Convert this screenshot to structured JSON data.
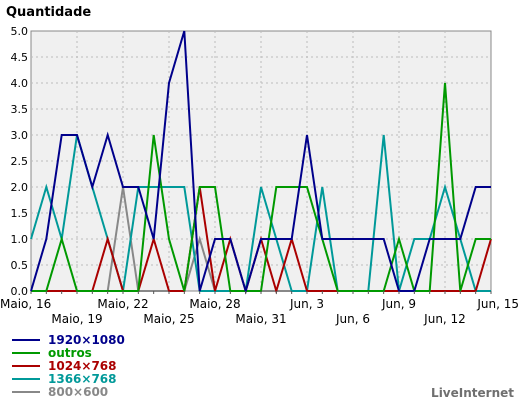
{
  "chart_data": {
    "type": "line",
    "title": "",
    "ylabel": "Quantidade",
    "xlabel": "",
    "ylim": [
      0,
      5
    ],
    "yticks": [
      "0.0",
      "0.5",
      "1.0",
      "1.5",
      "2.0",
      "2.5",
      "3.0",
      "3.5",
      "4.0",
      "4.5",
      "5.0"
    ],
    "x_tick_labels_top": [
      "Maio, 16",
      "Maio, 22",
      "Maio, 28",
      "Jun, 3",
      "Jun, 9",
      "Jun, 15"
    ],
    "x_tick_labels_bottom": [
      "Maio, 19",
      "Maio, 25",
      "Maio, 31",
      "Jun, 6",
      "Jun, 12"
    ],
    "days": [
      "Maio, 16",
      "Maio, 17",
      "Maio, 18",
      "Maio, 19",
      "Maio, 20",
      "Maio, 21",
      "Maio, 22",
      "Maio, 23",
      "Maio, 24",
      "Maio, 25",
      "Maio, 26",
      "Maio, 27",
      "Maio, 28",
      "Maio, 29",
      "Maio, 30",
      "Maio, 31",
      "Jun, 1",
      "Jun, 2",
      "Jun, 3",
      "Jun, 4",
      "Jun, 5",
      "Jun, 6",
      "Jun, 7",
      "Jun, 8",
      "Jun, 9",
      "Jun, 10",
      "Jun, 11",
      "Jun, 12",
      "Jun, 13",
      "Jun, 14",
      "Jun, 15"
    ],
    "grid": true,
    "legend_position": "bottom-left",
    "series": [
      {
        "name": "1920×1080",
        "color": "#00008b",
        "values": [
          0,
          1,
          3,
          3,
          2,
          3,
          2,
          2,
          1,
          4,
          5,
          0,
          1,
          1,
          0,
          1,
          1,
          1,
          3,
          1,
          1,
          1,
          1,
          1,
          0,
          0,
          1,
          1,
          1,
          2,
          2
        ]
      },
      {
        "name": "outros",
        "color": "#009900",
        "values": [
          0,
          0,
          1,
          0,
          0,
          0,
          0,
          0,
          3,
          1,
          0,
          2,
          2,
          0,
          0,
          0,
          2,
          2,
          2,
          1,
          0,
          0,
          0,
          0,
          1,
          0,
          0,
          4,
          0,
          1,
          1
        ]
      },
      {
        "name": "1024×768",
        "color": "#aa0000",
        "values": [
          0,
          0,
          0,
          0,
          0,
          1,
          0,
          0,
          1,
          0,
          0,
          2,
          0,
          1,
          0,
          1,
          0,
          1,
          0,
          0,
          0,
          0,
          0,
          0,
          0,
          0,
          0,
          0,
          0,
          0,
          1
        ]
      },
      {
        "name": "1366×768",
        "color": "#009999",
        "values": [
          1,
          2,
          1,
          3,
          2,
          1,
          0,
          2,
          2,
          2,
          2,
          0,
          0,
          0,
          0,
          2,
          1,
          0,
          0,
          2,
          0,
          0,
          0,
          3,
          0,
          1,
          1,
          2,
          1,
          0,
          0
        ]
      },
      {
        "name": "800×600",
        "color": "#888888",
        "values": [
          0,
          0,
          0,
          0,
          0,
          0,
          2,
          0,
          0,
          0,
          0,
          1,
          0,
          0,
          0,
          0,
          0,
          0,
          0,
          0,
          0,
          0,
          0,
          0,
          0,
          0,
          0,
          0,
          0,
          0,
          0
        ]
      }
    ]
  },
  "watermark": "LiveInternet"
}
